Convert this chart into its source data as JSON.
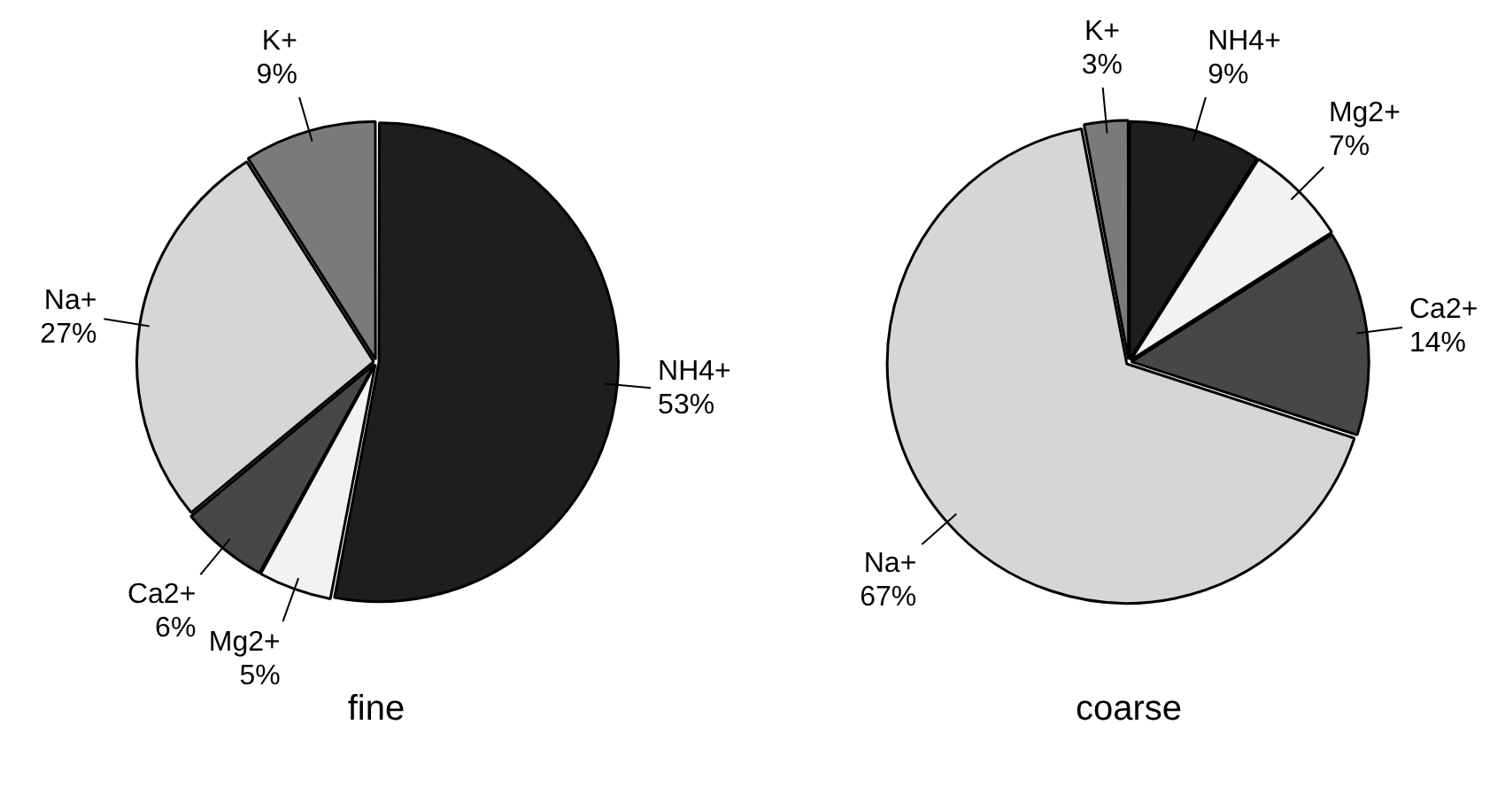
{
  "chart_data": [
    {
      "type": "pie",
      "title": "fine",
      "categories": [
        "NH4+",
        "Mg2+",
        "Ca2+",
        "Na+",
        "K+"
      ],
      "values": [
        53,
        5,
        6,
        27,
        9
      ],
      "value_labels": [
        "53%",
        "5%",
        "6%",
        "27%",
        "9%"
      ],
      "colors": [
        "#1e1e1e",
        "#f2f2f2",
        "#474747",
        "#d6d6d6",
        "#7a7a7a"
      ],
      "legend": false
    },
    {
      "type": "pie",
      "title": "coarse",
      "categories": [
        "NH4+",
        "Mg2+",
        "Ca2+",
        "Na+",
        "K+"
      ],
      "values": [
        9,
        7,
        14,
        67,
        3
      ],
      "value_labels": [
        "9%",
        "7%",
        "14%",
        "67%",
        "3%"
      ],
      "colors": [
        "#1e1e1e",
        "#f2f2f2",
        "#474747",
        "#d6d6d6",
        "#7a7a7a"
      ],
      "legend": false
    }
  ]
}
